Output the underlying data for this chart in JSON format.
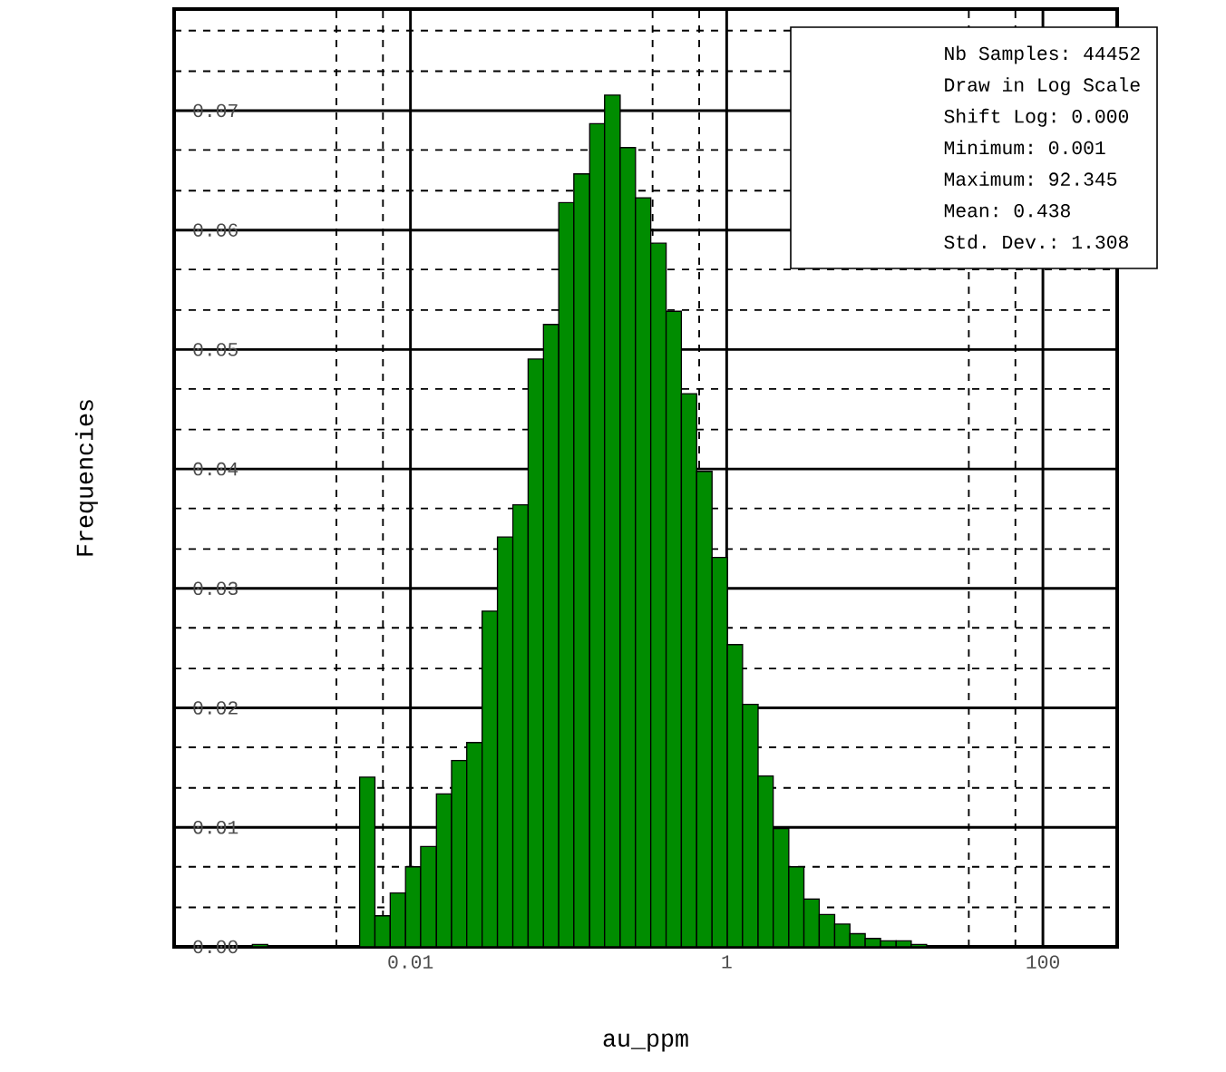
{
  "chart_data": {
    "type": "histogram",
    "xlabel": "au_ppm",
    "ylabel": "Frequencies",
    "color": "#008c00",
    "log": "x",
    "grid": true,
    "bins": [
      0.001,
      0.00125,
      0.00477,
      0.00596,
      0.00745,
      0.00931,
      0.0116,
      0.0146,
      0.0182,
      0.0227,
      0.0284,
      0.0355,
      0.0444,
      0.0555,
      0.0694,
      0.0867,
      0.108,
      0.136,
      0.169,
      0.212,
      0.265,
      0.331,
      0.414,
      0.517,
      0.646,
      0.808,
      1.01,
      1.26,
      1.58,
      1.97,
      2.47,
      3.08,
      3.85,
      4.82,
      6.02,
      7.52,
      9.4,
      11.8,
      14.7,
      18.4
    ],
    "values": [
      0.0002,
      0,
      0.0142,
      0.0026,
      0.0045,
      0.0067,
      0.0084,
      0.0128,
      0.0156,
      0.0171,
      0.0281,
      0.0343,
      0.037,
      0.0492,
      0.0521,
      0.0623,
      0.0647,
      0.0689,
      0.0713,
      0.0669,
      0.0627,
      0.0589,
      0.0532,
      0.0463,
      0.0398,
      0.0326,
      0.0253,
      0.0203,
      0.0143,
      0.0099,
      0.0067,
      0.004,
      0.0027,
      0.0019,
      0.0011,
      0.0007,
      0.0005,
      0.0005,
      0.0002
    ],
    "xlim": [
      0.00032,
      295
    ],
    "xticks": [
      {
        "value": 0.0034,
        "label": null
      },
      {
        "value": 0.0067,
        "label": null
      },
      0.01,
      {
        "value": 0.34,
        "label": null
      },
      {
        "value": 0.67,
        "label": null
      },
      1,
      {
        "value": 34,
        "label": null
      },
      {
        "value": 67,
        "label": null
      },
      100
    ],
    "ylim": [
      0,
      0.0785
    ],
    "yticks": [
      {
        "value": 0,
        "label": "0.00"
      },
      {
        "value": 0.0033,
        "label": null
      },
      {
        "value": 0.0067,
        "label": null
      },
      {
        "value": 0.01,
        "label": "0.01"
      },
      {
        "value": 0.0133,
        "label": null
      },
      {
        "value": 0.0167,
        "label": null
      },
      {
        "value": 0.02,
        "label": "0.02"
      },
      {
        "value": 0.0233,
        "label": null
      },
      {
        "value": 0.0267,
        "label": null
      },
      {
        "value": 0.03,
        "label": "0.03"
      },
      {
        "value": 0.0333,
        "label": null
      },
      {
        "value": 0.0367,
        "label": null
      },
      {
        "value": 0.04,
        "label": "0.04"
      },
      {
        "value": 0.0433,
        "label": null
      },
      {
        "value": 0.0467,
        "label": null
      },
      {
        "value": 0.05,
        "label": "0.05"
      },
      {
        "value": 0.0533,
        "label": null
      },
      {
        "value": 0.0567,
        "label": null
      },
      {
        "value": 0.06,
        "label": "0.06"
      },
      {
        "value": 0.0633,
        "label": null
      },
      {
        "value": 0.0667,
        "label": null
      },
      {
        "value": 0.07,
        "label": "0.07"
      },
      {
        "value": 0.0733,
        "label": null
      },
      {
        "value": 0.0767,
        "label": null
      }
    ],
    "annotations": [
      "Nb Samples: 44452",
      "Draw in Log Scale",
      "Shift Log: 0.000",
      "Minimum: 0.001",
      "Maximum: 92.345",
      "Mean: 0.438",
      "Std. Dev.: 1.308"
    ]
  }
}
